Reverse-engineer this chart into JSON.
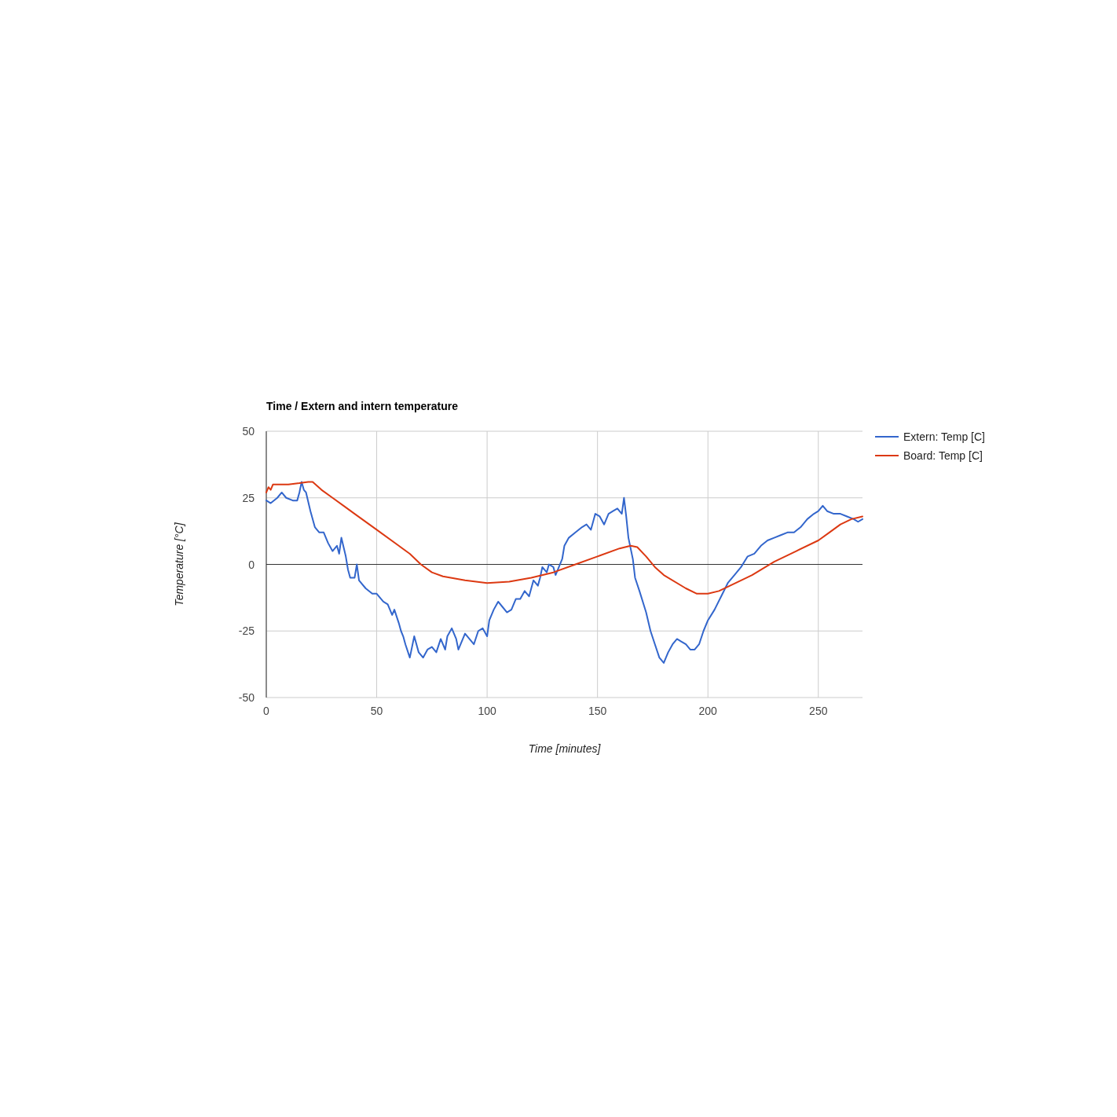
{
  "chart_data": {
    "type": "line",
    "title": "Time / Extern and intern temperature",
    "xlabel": "Time [minutes]",
    "ylabel": "Temperature [°C]",
    "xlim": [
      0,
      270
    ],
    "xticks": [
      0,
      50,
      100,
      150,
      200,
      250
    ],
    "ylim": [
      -50,
      50
    ],
    "yticks": [
      -50,
      -25,
      0,
      25,
      50
    ],
    "grid": true,
    "legend": "top right",
    "series": [
      {
        "name": "Extern: Temp [C]",
        "color": "#3366cc",
        "x": [
          0,
          2,
          5,
          7,
          9,
          12,
          14,
          15,
          16,
          17,
          18,
          20,
          22,
          24,
          26,
          28,
          30,
          32,
          33,
          34,
          36,
          37,
          38,
          40,
          41,
          42,
          45,
          48,
          50,
          53,
          55,
          57,
          58,
          60,
          61,
          62,
          63,
          65,
          66,
          67,
          69,
          71,
          73,
          75,
          77,
          79,
          81,
          82,
          84,
          86,
          87,
          90,
          92,
          94,
          96,
          98,
          100,
          101,
          103,
          105,
          107,
          109,
          111,
          113,
          115,
          117,
          119,
          121,
          123,
          124,
          125,
          127,
          128,
          130,
          131,
          132,
          134,
          135,
          137,
          140,
          143,
          145,
          147,
          149,
          151,
          153,
          155,
          157,
          159,
          161,
          162,
          163,
          164,
          166,
          167,
          169,
          172,
          174,
          176,
          178,
          180,
          182,
          184,
          186,
          188,
          190,
          192,
          194,
          196,
          198,
          200,
          203,
          206,
          209,
          212,
          215,
          218,
          221,
          224,
          227,
          230,
          233,
          236,
          239,
          242,
          245,
          248,
          250,
          252,
          254,
          257,
          260,
          263,
          266,
          268,
          270
        ],
        "values": [
          24,
          23,
          25,
          27,
          25,
          24,
          24,
          27,
          31,
          28,
          27,
          20,
          14,
          12,
          12,
          8,
          5,
          7,
          4,
          10,
          3,
          -2,
          -5,
          -5,
          0,
          -6,
          -9,
          -11,
          -11,
          -14,
          -15,
          -19,
          -17,
          -22,
          -25,
          -27,
          -30,
          -35,
          -31,
          -27,
          -33,
          -35,
          -32,
          -31,
          -33,
          -28,
          -32,
          -27,
          -24,
          -28,
          -32,
          -26,
          -28,
          -30,
          -25,
          -24,
          -27,
          -21,
          -17,
          -14,
          -16,
          -18,
          -17,
          -13,
          -13,
          -10,
          -12,
          -6,
          -8,
          -5,
          -1,
          -3,
          0,
          -1,
          -4,
          -2,
          2,
          7,
          10,
          12,
          14,
          15,
          13,
          19,
          18,
          15,
          19,
          20,
          21,
          19,
          25,
          18,
          10,
          2,
          -5,
          -10,
          -18,
          -25,
          -30,
          -35,
          -37,
          -33,
          -30,
          -28,
          -29,
          -30,
          -32,
          -32,
          -30,
          -25,
          -21,
          -17,
          -12,
          -7,
          -4,
          -1,
          3,
          4,
          7,
          9,
          10,
          11,
          12,
          12,
          14,
          17,
          19,
          20,
          22,
          20,
          19,
          19,
          18,
          17,
          16,
          17
        ]
      },
      {
        "name": "Board: Temp [C]",
        "color": "#dc3912",
        "x": [
          0,
          1,
          2,
          3,
          5,
          10,
          15,
          19,
          21,
          25,
          30,
          35,
          40,
          50,
          60,
          65,
          70,
          75,
          80,
          90,
          100,
          110,
          120,
          130,
          140,
          150,
          160,
          165,
          168,
          172,
          176,
          180,
          190,
          195,
          200,
          205,
          210,
          220,
          230,
          240,
          250,
          255,
          260,
          265,
          270
        ],
        "values": [
          27,
          29,
          28,
          30,
          30,
          30,
          30.5,
          31,
          31,
          28,
          25,
          22,
          19,
          13,
          7,
          4,
          0,
          -3,
          -4.5,
          -6,
          -7,
          -6.5,
          -5,
          -3,
          0,
          3,
          6,
          7,
          6.5,
          3,
          -1,
          -4,
          -9,
          -11,
          -11,
          -10,
          -8,
          -4,
          1,
          5,
          9,
          12,
          15,
          17,
          18
        ]
      }
    ]
  }
}
